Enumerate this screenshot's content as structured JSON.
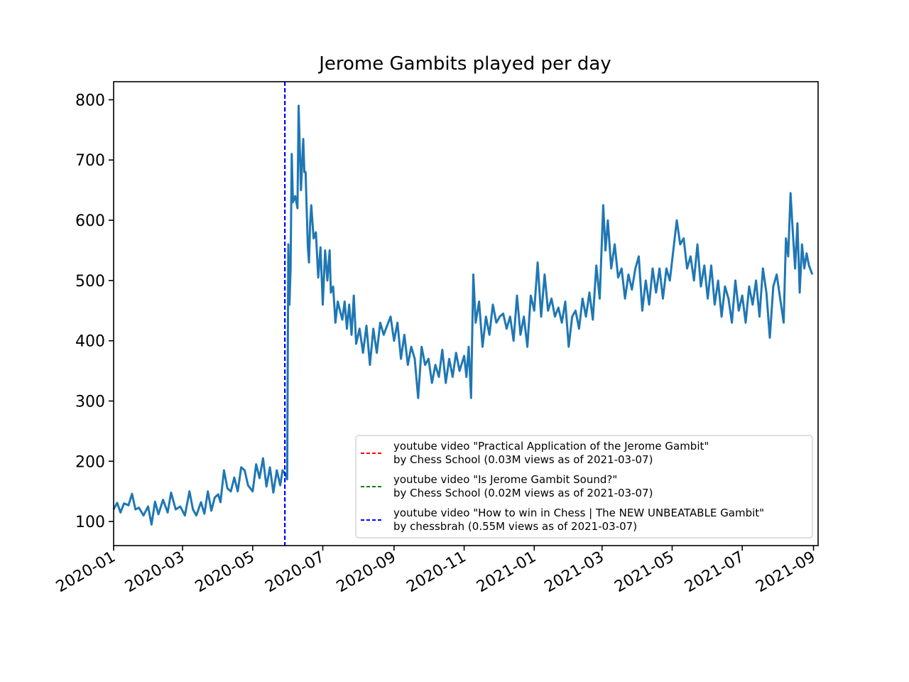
{
  "chart_data": {
    "type": "line",
    "title": "Jerome Gambits played per day",
    "xlabel": "",
    "ylabel": "",
    "x_range": [
      "2020-01-01",
      "2021-09-05"
    ],
    "ylim": [
      60,
      830
    ],
    "grid": false,
    "legend_position": "lower right",
    "x_ticks": [
      "2020-01",
      "2020-03",
      "2020-05",
      "2020-07",
      "2020-09",
      "2020-11",
      "2021-01",
      "2021-03",
      "2021-05",
      "2021-07",
      "2021-09"
    ],
    "y_ticks": [
      100,
      200,
      300,
      400,
      500,
      600,
      700,
      800
    ],
    "series": [
      {
        "color": "#1f77b4",
        "points": [
          [
            "2020-01-01",
            120
          ],
          [
            "2020-01-04",
            131
          ],
          [
            "2020-01-07",
            115
          ],
          [
            "2020-01-10",
            130
          ],
          [
            "2020-01-14",
            127
          ],
          [
            "2020-01-17",
            146
          ],
          [
            "2020-01-20",
            120
          ],
          [
            "2020-01-23",
            123
          ],
          [
            "2020-01-27",
            110
          ],
          [
            "2020-01-31",
            125
          ],
          [
            "2020-02-03",
            95
          ],
          [
            "2020-02-06",
            133
          ],
          [
            "2020-02-09",
            112
          ],
          [
            "2020-02-13",
            136
          ],
          [
            "2020-02-17",
            115
          ],
          [
            "2020-02-20",
            148
          ],
          [
            "2020-02-24",
            120
          ],
          [
            "2020-02-28",
            125
          ],
          [
            "2020-03-03",
            110
          ],
          [
            "2020-03-07",
            150
          ],
          [
            "2020-03-10",
            120
          ],
          [
            "2020-03-13",
            110
          ],
          [
            "2020-03-17",
            132
          ],
          [
            "2020-03-20",
            113
          ],
          [
            "2020-03-23",
            150
          ],
          [
            "2020-03-26",
            118
          ],
          [
            "2020-03-29",
            140
          ],
          [
            "2020-04-01",
            145
          ],
          [
            "2020-04-03",
            132
          ],
          [
            "2020-04-06",
            185
          ],
          [
            "2020-04-09",
            155
          ],
          [
            "2020-04-12",
            150
          ],
          [
            "2020-04-15",
            173
          ],
          [
            "2020-04-18",
            150
          ],
          [
            "2020-04-21",
            190
          ],
          [
            "2020-04-24",
            185
          ],
          [
            "2020-04-27",
            160
          ],
          [
            "2020-05-01",
            150
          ],
          [
            "2020-05-04",
            195
          ],
          [
            "2020-05-07",
            172
          ],
          [
            "2020-05-10",
            205
          ],
          [
            "2020-05-13",
            158
          ],
          [
            "2020-05-16",
            190
          ],
          [
            "2020-05-19",
            148
          ],
          [
            "2020-05-22",
            185
          ],
          [
            "2020-05-25",
            160
          ],
          [
            "2020-05-27",
            185
          ],
          [
            "2020-05-29",
            180
          ],
          [
            "2020-05-31",
            170
          ],
          [
            "2020-06-01",
            560
          ],
          [
            "2020-06-02",
            460
          ],
          [
            "2020-06-03",
            520
          ],
          [
            "2020-06-04",
            710
          ],
          [
            "2020-06-05",
            630
          ],
          [
            "2020-06-07",
            640
          ],
          [
            "2020-06-09",
            620
          ],
          [
            "2020-06-10",
            790
          ],
          [
            "2020-06-12",
            650
          ],
          [
            "2020-06-14",
            735
          ],
          [
            "2020-06-15",
            680
          ],
          [
            "2020-06-16",
            680
          ],
          [
            "2020-06-18",
            555
          ],
          [
            "2020-06-19",
            530
          ],
          [
            "2020-06-20",
            595
          ],
          [
            "2020-06-21",
            625
          ],
          [
            "2020-06-23",
            570
          ],
          [
            "2020-06-25",
            580
          ],
          [
            "2020-06-27",
            505
          ],
          [
            "2020-06-29",
            555
          ],
          [
            "2020-07-01",
            460
          ],
          [
            "2020-07-03",
            550
          ],
          [
            "2020-07-05",
            500
          ],
          [
            "2020-07-07",
            550
          ],
          [
            "2020-07-08",
            480
          ],
          [
            "2020-07-10",
            490
          ],
          [
            "2020-07-12",
            430
          ],
          [
            "2020-07-14",
            465
          ],
          [
            "2020-07-16",
            450
          ],
          [
            "2020-07-18",
            435
          ],
          [
            "2020-07-20",
            465
          ],
          [
            "2020-07-22",
            420
          ],
          [
            "2020-07-24",
            460
          ],
          [
            "2020-07-26",
            410
          ],
          [
            "2020-07-28",
            475
          ],
          [
            "2020-07-30",
            395
          ],
          [
            "2020-08-02",
            420
          ],
          [
            "2020-08-05",
            380
          ],
          [
            "2020-08-08",
            425
          ],
          [
            "2020-08-11",
            360
          ],
          [
            "2020-08-14",
            420
          ],
          [
            "2020-08-17",
            380
          ],
          [
            "2020-08-20",
            430
          ],
          [
            "2020-08-23",
            410
          ],
          [
            "2020-08-26",
            425
          ],
          [
            "2020-08-29",
            440
          ],
          [
            "2020-09-01",
            400
          ],
          [
            "2020-09-04",
            430
          ],
          [
            "2020-09-07",
            370
          ],
          [
            "2020-09-10",
            410
          ],
          [
            "2020-09-13",
            360
          ],
          [
            "2020-09-16",
            390
          ],
          [
            "2020-09-19",
            370
          ],
          [
            "2020-09-22",
            305
          ],
          [
            "2020-09-25",
            390
          ],
          [
            "2020-09-28",
            360
          ],
          [
            "2020-10-01",
            370
          ],
          [
            "2020-10-04",
            330
          ],
          [
            "2020-10-07",
            360
          ],
          [
            "2020-10-10",
            340
          ],
          [
            "2020-10-13",
            385
          ],
          [
            "2020-10-16",
            330
          ],
          [
            "2020-10-19",
            370
          ],
          [
            "2020-10-22",
            340
          ],
          [
            "2020-10-25",
            380
          ],
          [
            "2020-10-28",
            350
          ],
          [
            "2020-11-01",
            375
          ],
          [
            "2020-11-03",
            340
          ],
          [
            "2020-11-05",
            390
          ],
          [
            "2020-11-07",
            305
          ],
          [
            "2020-11-09",
            510
          ],
          [
            "2020-11-11",
            430
          ],
          [
            "2020-11-14",
            465
          ],
          [
            "2020-11-17",
            390
          ],
          [
            "2020-11-20",
            440
          ],
          [
            "2020-11-23",
            410
          ],
          [
            "2020-11-26",
            460
          ],
          [
            "2020-11-29",
            430
          ],
          [
            "2020-12-02",
            440
          ],
          [
            "2020-12-05",
            445
          ],
          [
            "2020-12-08",
            420
          ],
          [
            "2020-12-11",
            440
          ],
          [
            "2020-12-14",
            400
          ],
          [
            "2020-12-17",
            475
          ],
          [
            "2020-12-20",
            410
          ],
          [
            "2020-12-23",
            440
          ],
          [
            "2020-12-26",
            390
          ],
          [
            "2020-12-29",
            475
          ],
          [
            "2021-01-01",
            450
          ],
          [
            "2021-01-04",
            530
          ],
          [
            "2021-01-07",
            440
          ],
          [
            "2021-01-10",
            510
          ],
          [
            "2021-01-13",
            450
          ],
          [
            "2021-01-16",
            470
          ],
          [
            "2021-01-19",
            440
          ],
          [
            "2021-01-22",
            455
          ],
          [
            "2021-01-25",
            430
          ],
          [
            "2021-01-28",
            465
          ],
          [
            "2021-01-31",
            390
          ],
          [
            "2021-02-03",
            440
          ],
          [
            "2021-02-06",
            450
          ],
          [
            "2021-02-09",
            420
          ],
          [
            "2021-02-12",
            470
          ],
          [
            "2021-02-15",
            440
          ],
          [
            "2021-02-18",
            480
          ],
          [
            "2021-02-21",
            435
          ],
          [
            "2021-02-24",
            525
          ],
          [
            "2021-02-27",
            470
          ],
          [
            "2021-03-02",
            625
          ],
          [
            "2021-03-04",
            550
          ],
          [
            "2021-03-06",
            600
          ],
          [
            "2021-03-09",
            520
          ],
          [
            "2021-03-12",
            560
          ],
          [
            "2021-03-15",
            505
          ],
          [
            "2021-03-18",
            520
          ],
          [
            "2021-03-21",
            470
          ],
          [
            "2021-03-24",
            510
          ],
          [
            "2021-03-27",
            485
          ],
          [
            "2021-03-30",
            520
          ],
          [
            "2021-04-02",
            540
          ],
          [
            "2021-04-05",
            450
          ],
          [
            "2021-04-08",
            500
          ],
          [
            "2021-04-11",
            460
          ],
          [
            "2021-04-14",
            520
          ],
          [
            "2021-04-17",
            480
          ],
          [
            "2021-04-20",
            520
          ],
          [
            "2021-04-23",
            470
          ],
          [
            "2021-04-26",
            520
          ],
          [
            "2021-04-29",
            500
          ],
          [
            "2021-05-02",
            550
          ],
          [
            "2021-05-05",
            600
          ],
          [
            "2021-05-08",
            560
          ],
          [
            "2021-05-11",
            570
          ],
          [
            "2021-05-14",
            520
          ],
          [
            "2021-05-17",
            540
          ],
          [
            "2021-05-20",
            500
          ],
          [
            "2021-05-23",
            560
          ],
          [
            "2021-05-26",
            490
          ],
          [
            "2021-05-29",
            525
          ],
          [
            "2021-06-01",
            470
          ],
          [
            "2021-06-04",
            525
          ],
          [
            "2021-06-07",
            460
          ],
          [
            "2021-06-10",
            500
          ],
          [
            "2021-06-13",
            440
          ],
          [
            "2021-06-16",
            490
          ],
          [
            "2021-06-19",
            470
          ],
          [
            "2021-06-22",
            430
          ],
          [
            "2021-06-25",
            500
          ],
          [
            "2021-06-28",
            450
          ],
          [
            "2021-07-01",
            475
          ],
          [
            "2021-07-04",
            430
          ],
          [
            "2021-07-07",
            490
          ],
          [
            "2021-07-10",
            460
          ],
          [
            "2021-07-13",
            500
          ],
          [
            "2021-07-16",
            440
          ],
          [
            "2021-07-19",
            520
          ],
          [
            "2021-07-22",
            480
          ],
          [
            "2021-07-25",
            405
          ],
          [
            "2021-07-28",
            490
          ],
          [
            "2021-07-31",
            510
          ],
          [
            "2021-08-03",
            470
          ],
          [
            "2021-08-06",
            430
          ],
          [
            "2021-08-08",
            570
          ],
          [
            "2021-08-10",
            540
          ],
          [
            "2021-08-12",
            645
          ],
          [
            "2021-08-14",
            580
          ],
          [
            "2021-08-16",
            520
          ],
          [
            "2021-08-18",
            595
          ],
          [
            "2021-08-20",
            480
          ],
          [
            "2021-08-22",
            560
          ],
          [
            "2021-08-24",
            520
          ],
          [
            "2021-08-26",
            545
          ],
          [
            "2021-08-28",
            525
          ],
          [
            "2021-08-31",
            510
          ]
        ]
      }
    ],
    "vertical_lines": [
      {
        "date": "2020-05-29",
        "color": "#0000ff",
        "style": "dashed"
      }
    ],
    "legend": [
      {
        "color": "#ff0000",
        "style": "dashed",
        "line1": "youtube video \"Practical Application of the Jerome Gambit\"",
        "line2": "by Chess School (0.03M views as of 2021-03-07)"
      },
      {
        "color": "#008000",
        "style": "dashed",
        "line1": "youtube video \"Is Jerome Gambit Sound?\"",
        "line2": "by Chess School (0.02M views as of 2021-03-07)"
      },
      {
        "color": "#0000ff",
        "style": "dashed",
        "line1": "youtube video \"How to win in Chess | The NEW UNBEATABLE Gambit\"",
        "line2": "by chessbrah (0.55M views as of 2021-03-07)"
      }
    ]
  }
}
